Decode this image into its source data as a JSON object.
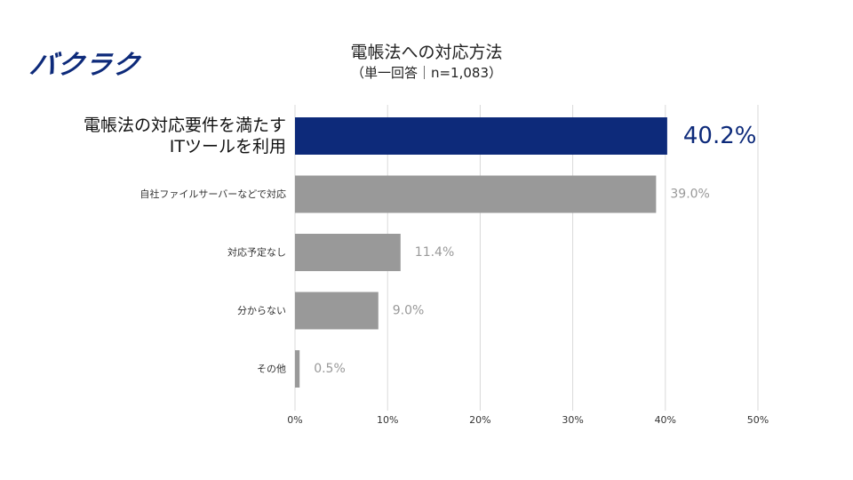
{
  "logo": {
    "text": "バクラク"
  },
  "chart_data": {
    "type": "bar",
    "orientation": "horizontal",
    "title": "電帳法への対応方法",
    "subtitle": "（単一回答｜n=1,083）",
    "categories": [
      [
        "電帳法の対応要件を満たす",
        "ITツールを利用"
      ],
      [
        "自社ファイルサーバーなどで対応"
      ],
      [
        "対応予定なし"
      ],
      [
        "分からない"
      ],
      [
        "その他"
      ]
    ],
    "values": [
      40.2,
      39.0,
      11.4,
      9.0,
      0.5
    ],
    "value_labels": [
      "40.2%",
      "39.0%",
      "11.4%",
      "9.0%",
      "0.5%"
    ],
    "highlight_index": 0,
    "xlim": [
      0,
      50
    ],
    "xticks": [
      0,
      10,
      20,
      30,
      40,
      50
    ],
    "xtick_labels": [
      "0%",
      "10%",
      "20%",
      "30%",
      "40%",
      "50%"
    ],
    "grid": true,
    "colors": {
      "highlight": "#0d2a7a",
      "default": "#999999",
      "grid": "#d9d9d9"
    }
  }
}
